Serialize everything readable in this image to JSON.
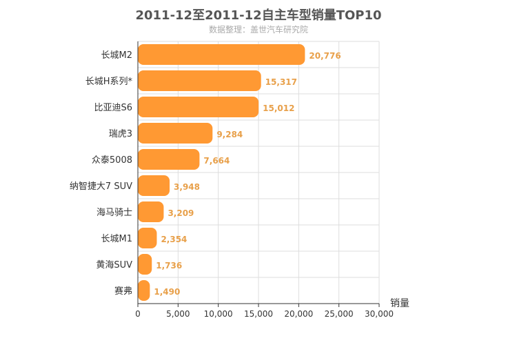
{
  "chart_data": {
    "type": "bar",
    "orientation": "horizontal",
    "title": "2011-12至2011-12自主车型销量TOP10",
    "subtitle": "数据整理：盖世汽车研究院",
    "xlabel": "销量",
    "ylabel": "",
    "xlim": [
      0,
      30000
    ],
    "xticks": [
      0,
      5000,
      10000,
      15000,
      20000,
      25000,
      30000
    ],
    "xtick_labels": [
      "0",
      "5,000",
      "10,000",
      "15,000",
      "20,000",
      "25,000",
      "30,000"
    ],
    "grid": true,
    "legend": "none",
    "categories": [
      "长城M2",
      "长城H系列*",
      "比亚迪S6",
      "瑞虎3",
      "众泰5008",
      "纳智捷大7 SUV",
      "海马骑士",
      "长城M1",
      "黄海SUV",
      "赛弗"
    ],
    "values": [
      20776,
      15317,
      15012,
      9284,
      7664,
      3948,
      3209,
      2354,
      1736,
      1490
    ],
    "value_labels": [
      "20,776",
      "15,317",
      "15,012",
      "9,284",
      "7,664",
      "3,948",
      "3,209",
      "2,354",
      "1,736",
      "1,490"
    ],
    "colors": {
      "bar": "#ff9933",
      "value_label": "#e8a04a",
      "grid": "#dddddd",
      "axis": "#333333",
      "text": "#333333"
    }
  }
}
